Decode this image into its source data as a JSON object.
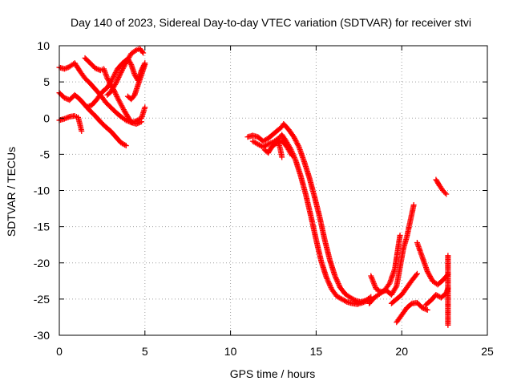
{
  "chart_data": {
    "type": "scatter",
    "title": "Day 140 of 2023, Sidereal Day-to-day VTEC variation (SDTVAR) for receiver stvi",
    "xlabel": "GPS time / hours",
    "ylabel": "SDTVAR / TECUs",
    "xlim": [
      0,
      25
    ],
    "ylim": [
      -30,
      10
    ],
    "xticks": [
      "0",
      "5",
      "10",
      "15",
      "20",
      "25"
    ],
    "yticks": [
      "10",
      "5",
      "0",
      "-5",
      "-10",
      "-15",
      "-20",
      "-25",
      "-30"
    ],
    "grid": true,
    "marker": "+",
    "color": "#ff0000",
    "tracks": [
      {
        "points": [
          [
            0.0,
            7.0
          ],
          [
            0.3,
            6.8
          ],
          [
            0.6,
            7.1
          ],
          [
            0.9,
            7.6
          ],
          [
            1.2,
            6.5
          ],
          [
            1.5,
            5.5
          ],
          [
            1.8,
            4.8
          ],
          [
            2.1,
            4.0
          ],
          [
            2.4,
            3.2
          ],
          [
            2.7,
            2.2
          ],
          [
            3.0,
            1.5
          ],
          [
            3.3,
            0.8
          ],
          [
            3.6,
            0.2
          ],
          [
            3.9,
            -0.3
          ],
          [
            4.2,
            -0.6
          ],
          [
            4.5,
            -0.8
          ],
          [
            4.8,
            -0.5
          ]
        ]
      },
      {
        "points": [
          [
            0.0,
            3.5
          ],
          [
            0.3,
            2.8
          ],
          [
            0.6,
            2.5
          ],
          [
            0.9,
            3.2
          ],
          [
            1.2,
            2.6
          ],
          [
            1.5,
            1.8
          ],
          [
            1.8,
            1.0
          ],
          [
            2.1,
            0.3
          ],
          [
            2.4,
            -0.5
          ],
          [
            2.7,
            -1.2
          ],
          [
            3.0,
            -1.8
          ],
          [
            3.3,
            -2.6
          ],
          [
            3.6,
            -3.4
          ],
          [
            3.9,
            -3.8
          ]
        ]
      },
      {
        "points": [
          [
            0.0,
            -0.3
          ],
          [
            0.3,
            -0.1
          ],
          [
            0.6,
            0.2
          ],
          [
            0.9,
            0.3
          ],
          [
            1.1,
            0.1
          ],
          [
            1.2,
            -0.8
          ],
          [
            1.3,
            -1.8
          ]
        ]
      },
      {
        "points": [
          [
            1.5,
            8.3
          ],
          [
            1.8,
            7.6
          ],
          [
            2.1,
            6.9
          ],
          [
            2.4,
            6.6
          ],
          [
            2.6,
            6.8
          ],
          [
            2.8,
            5.5
          ],
          [
            3.0,
            4.6
          ],
          [
            3.2,
            3.8
          ],
          [
            3.4,
            2.8
          ],
          [
            3.6,
            1.9
          ],
          [
            3.8,
            1.0
          ],
          [
            4.0,
            0.2
          ],
          [
            4.2,
            -0.6
          ],
          [
            4.5,
            -0.4
          ],
          [
            4.8,
            0.0
          ],
          [
            5.0,
            1.5
          ]
        ]
      },
      {
        "points": [
          [
            1.6,
            1.5
          ],
          [
            1.9,
            1.8
          ],
          [
            2.2,
            2.6
          ],
          [
            2.5,
            3.6
          ],
          [
            2.8,
            4.2
          ],
          [
            3.1,
            5.4
          ],
          [
            3.4,
            6.8
          ],
          [
            3.7,
            7.6
          ],
          [
            4.0,
            8.2
          ],
          [
            4.2,
            7.4
          ],
          [
            4.4,
            6.0
          ],
          [
            4.6,
            5.2
          ],
          [
            4.8,
            6.6
          ],
          [
            5.0,
            7.6
          ]
        ]
      },
      {
        "points": [
          [
            2.8,
            3.2
          ],
          [
            3.0,
            3.6
          ],
          [
            3.3,
            4.8
          ],
          [
            3.6,
            6.3
          ],
          [
            3.9,
            7.7
          ],
          [
            4.2,
            8.9
          ],
          [
            4.5,
            9.4
          ],
          [
            4.7,
            9.6
          ],
          [
            4.9,
            9.0
          ]
        ]
      },
      {
        "points": [
          [
            4.0,
            3.0
          ],
          [
            4.2,
            2.6
          ],
          [
            4.4,
            3.2
          ],
          [
            4.6,
            4.6
          ],
          [
            4.8,
            6.0
          ],
          [
            5.0,
            7.4
          ]
        ]
      },
      {
        "points": [
          [
            11.0,
            -2.6
          ],
          [
            11.3,
            -2.4
          ],
          [
            11.6,
            -2.6
          ],
          [
            11.9,
            -3.2
          ],
          [
            12.2,
            -2.8
          ],
          [
            12.5,
            -2.2
          ],
          [
            12.8,
            -1.6
          ],
          [
            13.0,
            -1.2
          ],
          [
            13.1,
            -0.8
          ],
          [
            13.4,
            -1.6
          ],
          [
            13.7,
            -2.6
          ],
          [
            14.0,
            -4.0
          ],
          [
            14.3,
            -6.0
          ],
          [
            14.6,
            -8.2
          ],
          [
            14.9,
            -10.8
          ],
          [
            15.2,
            -13.6
          ],
          [
            15.5,
            -16.8
          ],
          [
            15.8,
            -19.6
          ],
          [
            16.1,
            -21.8
          ],
          [
            16.4,
            -23.4
          ],
          [
            16.7,
            -24.3
          ],
          [
            17.0,
            -24.8
          ],
          [
            17.3,
            -25.2
          ],
          [
            17.6,
            -25.4
          ],
          [
            17.9,
            -25.2
          ],
          [
            18.2,
            -24.7
          ]
        ]
      },
      {
        "points": [
          [
            11.3,
            -3.2
          ],
          [
            11.6,
            -3.6
          ],
          [
            11.9,
            -4.0
          ],
          [
            12.2,
            -3.6
          ],
          [
            12.5,
            -3.3
          ],
          [
            12.8,
            -2.8
          ],
          [
            13.0,
            -2.3
          ],
          [
            13.2,
            -3.0
          ],
          [
            13.5,
            -4.2
          ],
          [
            13.8,
            -5.8
          ],
          [
            14.1,
            -8.0
          ],
          [
            14.4,
            -10.6
          ],
          [
            14.7,
            -13.6
          ],
          [
            15.0,
            -16.8
          ],
          [
            15.3,
            -19.8
          ],
          [
            15.6,
            -22.0
          ],
          [
            15.9,
            -23.6
          ],
          [
            16.2,
            -24.6
          ],
          [
            16.5,
            -25.0
          ],
          [
            16.8,
            -25.4
          ],
          [
            17.1,
            -25.6
          ],
          [
            17.4,
            -25.7
          ],
          [
            17.7,
            -25.5
          ],
          [
            18.0,
            -25.2
          ]
        ]
      },
      {
        "points": [
          [
            12.0,
            -4.4
          ],
          [
            12.2,
            -4.8
          ],
          [
            12.4,
            -4.0
          ],
          [
            12.7,
            -3.4
          ],
          [
            13.0,
            -3.1
          ],
          [
            13.3,
            -4.0
          ],
          [
            13.6,
            -5.2
          ]
        ]
      },
      {
        "points": [
          [
            12.8,
            -3.4
          ],
          [
            12.9,
            -4.2
          ],
          [
            13.0,
            -5.4
          ]
        ]
      },
      {
        "points": [
          [
            18.2,
            -21.8
          ],
          [
            18.5,
            -23.6
          ],
          [
            18.8,
            -24.0
          ],
          [
            19.1,
            -23.8
          ],
          [
            19.4,
            -24.4
          ],
          [
            19.7,
            -23.2
          ],
          [
            19.9,
            -20.6
          ],
          [
            20.1,
            -18.0
          ],
          [
            20.3,
            -16.4
          ],
          [
            20.5,
            -14.2
          ],
          [
            20.7,
            -12.0
          ]
        ]
      },
      {
        "points": [
          [
            18.1,
            -25.6
          ],
          [
            18.4,
            -24.8
          ],
          [
            18.7,
            -24.3
          ],
          [
            19.0,
            -23.8
          ],
          [
            19.3,
            -22.8
          ],
          [
            19.6,
            -20.8
          ],
          [
            19.9,
            -16.2
          ]
        ]
      },
      {
        "points": [
          [
            19.4,
            -25.6
          ],
          [
            19.7,
            -25.0
          ],
          [
            20.0,
            -24.4
          ],
          [
            20.3,
            -23.4
          ],
          [
            20.6,
            -22.4
          ],
          [
            20.9,
            -21.5
          ]
        ]
      },
      {
        "points": [
          [
            19.7,
            -28.2
          ],
          [
            20.0,
            -27.2
          ],
          [
            20.3,
            -26.2
          ],
          [
            20.6,
            -25.6
          ],
          [
            20.9,
            -25.5
          ],
          [
            21.2,
            -26.2
          ],
          [
            21.5,
            -26.5
          ]
        ]
      },
      {
        "points": [
          [
            20.9,
            -17.2
          ],
          [
            21.2,
            -19.2
          ],
          [
            21.5,
            -21.2
          ],
          [
            21.8,
            -22.5
          ],
          [
            22.1,
            -23.0
          ],
          [
            22.4,
            -22.4
          ],
          [
            22.7,
            -21.6
          ]
        ]
      },
      {
        "points": [
          [
            21.4,
            -25.8
          ],
          [
            21.7,
            -25.2
          ],
          [
            22.0,
            -24.4
          ],
          [
            22.3,
            -24.8
          ],
          [
            22.6,
            -24.2
          ],
          [
            22.7,
            -23.5
          ]
        ]
      },
      {
        "points": [
          [
            22.0,
            -8.5
          ],
          [
            22.2,
            -9.3
          ],
          [
            22.4,
            -10.0
          ],
          [
            22.6,
            -10.5
          ]
        ]
      },
      {
        "points": [
          [
            22.7,
            -19.0
          ],
          [
            22.7,
            -28.6
          ]
        ]
      }
    ]
  }
}
